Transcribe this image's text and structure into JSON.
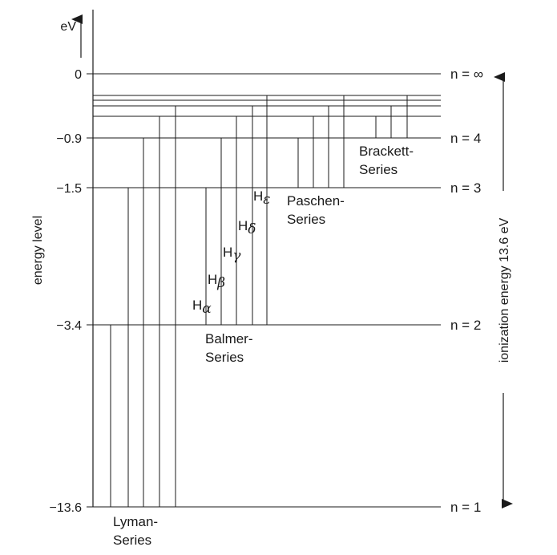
{
  "units": "eV",
  "y_axis_label": "energy level",
  "ionization_label": "ionization energy 13.6 eV",
  "levels": [
    {
      "value": "0",
      "n_label": "n = ∞",
      "energy": 0
    },
    {
      "value": "−0.9",
      "n_label": "n = 4",
      "energy": -0.9
    },
    {
      "value": "−1.5",
      "n_label": "n = 3",
      "energy": -1.5
    },
    {
      "value": "−3.4",
      "n_label": "n = 2",
      "energy": -3.4
    },
    {
      "value": "−13.6",
      "n_label": "n = 1",
      "energy": -13.6
    }
  ],
  "series": {
    "lyman": {
      "line1": "Lyman-",
      "line2": "Series"
    },
    "balmer": {
      "line1": "Balmer-",
      "line2": "Series"
    },
    "paschen": {
      "line1": "Paschen-",
      "line2": "Series"
    },
    "brackett": {
      "line1": "Brackett-",
      "line2": "Series"
    }
  },
  "balmer_lines": [
    {
      "h": "H",
      "sub": "α"
    },
    {
      "h": "H",
      "sub": "β"
    },
    {
      "h": "H",
      "sub": "γ"
    },
    {
      "h": "H",
      "sub": "δ"
    },
    {
      "h": "H",
      "sub": "ε"
    }
  ]
}
